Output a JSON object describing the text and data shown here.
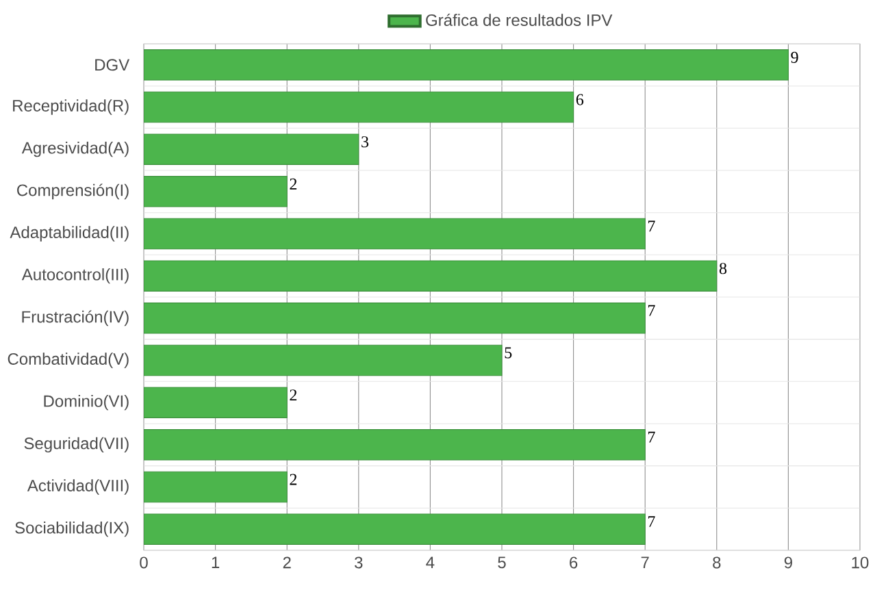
{
  "chart_data": {
    "type": "bar",
    "orientation": "horizontal",
    "categories": [
      "DGV",
      "Receptividad(R)",
      "Agresividad(A)",
      "Comprensión(I)",
      "Adaptabilidad(II)",
      "Autocontrol(III)",
      "Frustración(IV)",
      "Combatividad(V)",
      "Dominio(VI)",
      "Seguridad(VII)",
      "Actividad(VIII)",
      "Sociabilidad(IX)"
    ],
    "series": [
      {
        "name": "Gráfica de resultados IPV",
        "color": "#4cb54c",
        "values": [
          9,
          6,
          3,
          2,
          7,
          8,
          7,
          5,
          2,
          7,
          2,
          7
        ]
      }
    ],
    "xlim": [
      0,
      10
    ],
    "xticks": [
      0,
      1,
      2,
      3,
      4,
      5,
      6,
      7,
      8,
      9,
      10
    ],
    "grid": true,
    "legend": "top",
    "data_labels": true
  }
}
